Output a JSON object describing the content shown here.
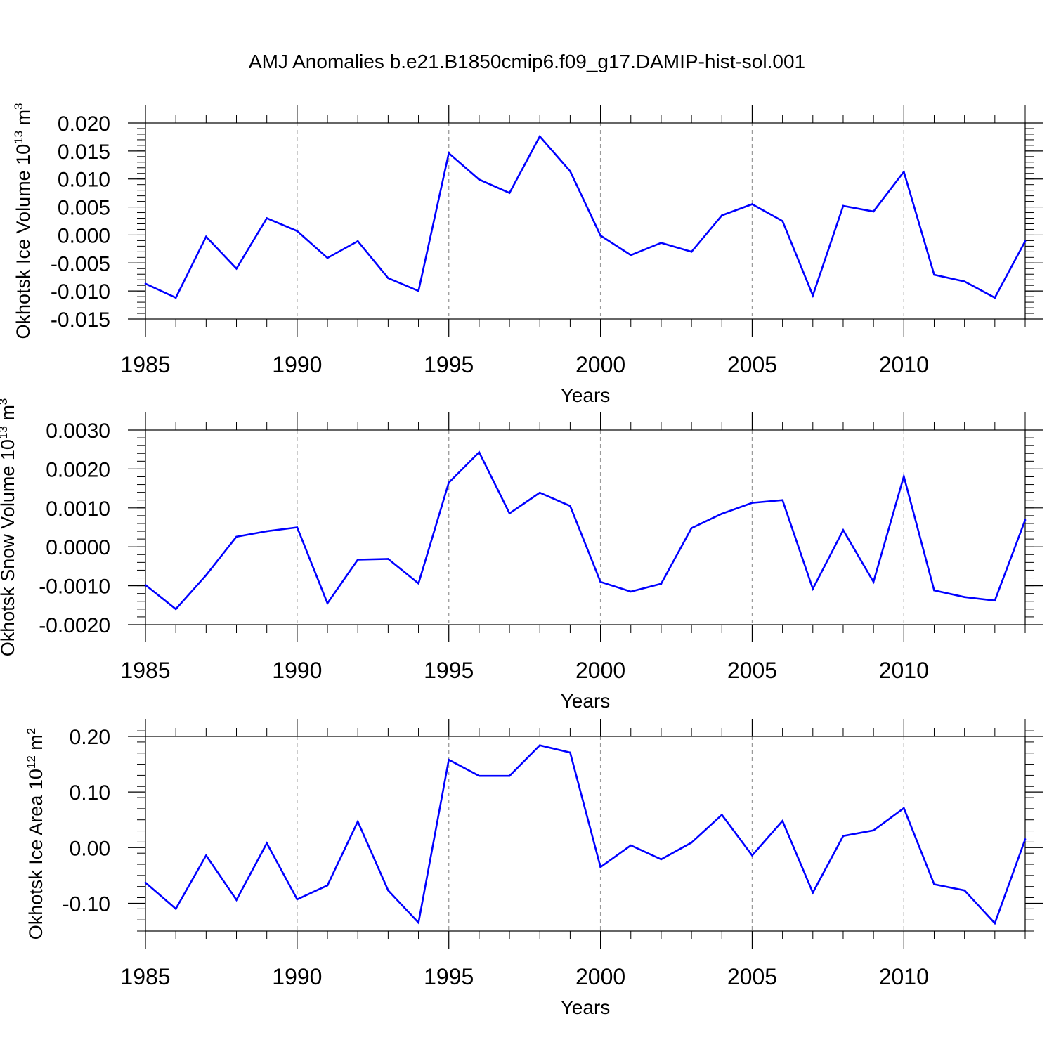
{
  "title": "AMJ Anomalies b.e21.B1850cmip6.f09_g17.DAMIP-hist-sol.001",
  "colors": {
    "series": "#0000ff",
    "grid": "#9a9a9a",
    "axis": "#000000"
  },
  "chart_data": [
    {
      "type": "line",
      "ylabel_main": "Okhotsk Ice Volume 10",
      "ylabel_exp": "13",
      "ylabel_unit": " m",
      "ylabel_unit_exp": "3",
      "xlabel": "Years",
      "xlim": [
        1985,
        2014
      ],
      "ylim": [
        -0.015,
        0.02
      ],
      "ymajor": [
        -0.015,
        -0.01,
        -0.005,
        0.0,
        0.005,
        0.01,
        0.015,
        0.02
      ],
      "yticklabels": [
        "-0.015",
        "-0.010",
        "-0.005",
        "0.000",
        "0.005",
        "0.010",
        "0.015",
        "0.020"
      ],
      "yminor": 0.001,
      "xticks": [
        1985,
        1990,
        1995,
        2000,
        2005,
        2010
      ],
      "xticklabels": [
        "1985",
        "1990",
        "1995",
        "2000",
        "2005",
        "2010"
      ],
      "grid_x": [
        1990,
        1995,
        2000,
        2005,
        2010
      ],
      "series": [
        {
          "name": "Okhotsk Ice Volume",
          "x": [
            1985,
            1986,
            1987,
            1988,
            1989,
            1990,
            1991,
            1992,
            1993,
            1994,
            1995,
            1996,
            1997,
            1998,
            1999,
            2000,
            2001,
            2002,
            2003,
            2004,
            2005,
            2006,
            2007,
            2008,
            2009,
            2010,
            2011,
            2012,
            2013,
            2014
          ],
          "values": [
            -0.0087,
            -0.0112,
            -0.0003,
            -0.006,
            0.003,
            0.0007,
            -0.0041,
            -0.0011,
            -0.0077,
            -0.01,
            0.0146,
            0.0099,
            0.0075,
            0.0176,
            0.0114,
            -0.0001,
            -0.0036,
            -0.0014,
            -0.003,
            0.0035,
            0.0055,
            0.0025,
            -0.0108,
            0.0052,
            0.0042,
            0.0113,
            -0.0071,
            -0.0083,
            -0.0112,
            -0.0011
          ]
        }
      ]
    },
    {
      "type": "line",
      "ylabel_main": "Okhotsk Snow Volume 10",
      "ylabel_exp": "13",
      "ylabel_unit": " m",
      "ylabel_unit_exp": "3",
      "xlabel": "Years",
      "xlim": [
        1985,
        2014
      ],
      "ylim": [
        -0.002,
        0.003
      ],
      "ymajor": [
        -0.002,
        -0.001,
        0.0,
        0.001,
        0.002,
        0.003
      ],
      "yticklabels": [
        "-0.0020",
        "-0.0010",
        "0.0000",
        "0.0010",
        "0.0020",
        "0.0030"
      ],
      "yminor": 0.0002,
      "xticks": [
        1985,
        1990,
        1995,
        2000,
        2005,
        2010
      ],
      "xticklabels": [
        "1985",
        "1990",
        "1995",
        "2000",
        "2005",
        "2010"
      ],
      "grid_x": [
        1990,
        1995,
        2000,
        2005,
        2010
      ],
      "series": [
        {
          "name": "Okhotsk Snow Volume",
          "x": [
            1985,
            1986,
            1987,
            1988,
            1989,
            1990,
            1991,
            1992,
            1993,
            1994,
            1995,
            1996,
            1997,
            1998,
            1999,
            2000,
            2001,
            2002,
            2003,
            2004,
            2005,
            2006,
            2007,
            2008,
            2009,
            2010,
            2011,
            2012,
            2013,
            2014
          ],
          "values": [
            -0.00098,
            -0.0016,
            -0.00073,
            0.00026,
            0.0004,
            0.0005,
            -0.00145,
            -0.00033,
            -0.00031,
            -0.00094,
            0.00165,
            0.00243,
            0.00086,
            0.00139,
            0.00105,
            -0.0009,
            -0.00115,
            -0.00095,
            0.00048,
            0.00085,
            0.00113,
            0.0012,
            -0.00108,
            0.00043,
            -0.0009,
            0.00181,
            -0.00112,
            -0.00129,
            -0.00138,
            0.00069
          ]
        }
      ]
    },
    {
      "type": "line",
      "ylabel_main": "Okhotsk Ice Area 10",
      "ylabel_exp": "12",
      "ylabel_unit": " m",
      "ylabel_unit_exp": "2",
      "xlabel": "Years",
      "xlim": [
        1985,
        2014
      ],
      "ylim": [
        -0.15,
        0.2
      ],
      "ymajor": [
        -0.1,
        0.0,
        0.1,
        0.2
      ],
      "yticklabels": [
        "-0.10",
        "0.00",
        "0.10",
        "0.20"
      ],
      "yminor": 0.02,
      "xticks": [
        1985,
        1990,
        1995,
        2000,
        2005,
        2010
      ],
      "xticklabels": [
        "1985",
        "1990",
        "1995",
        "2000",
        "2005",
        "2010"
      ],
      "grid_x": [
        1990,
        1995,
        2000,
        2005,
        2010
      ],
      "series": [
        {
          "name": "Okhotsk Ice Area",
          "x": [
            1985,
            1986,
            1987,
            1988,
            1989,
            1990,
            1991,
            1992,
            1993,
            1994,
            1995,
            1996,
            1997,
            1998,
            1999,
            2000,
            2001,
            2002,
            2003,
            2004,
            2005,
            2006,
            2007,
            2008,
            2009,
            2010,
            2011,
            2012,
            2013,
            2014
          ],
          "values": [
            -0.063,
            -0.11,
            -0.014,
            -0.094,
            0.008,
            -0.093,
            -0.068,
            0.047,
            -0.077,
            -0.135,
            0.158,
            0.129,
            0.129,
            0.184,
            0.171,
            -0.035,
            0.004,
            -0.021,
            0.009,
            0.059,
            -0.014,
            0.048,
            -0.081,
            0.021,
            0.031,
            0.071,
            -0.066,
            -0.077,
            -0.136,
            0.015
          ]
        }
      ]
    }
  ]
}
